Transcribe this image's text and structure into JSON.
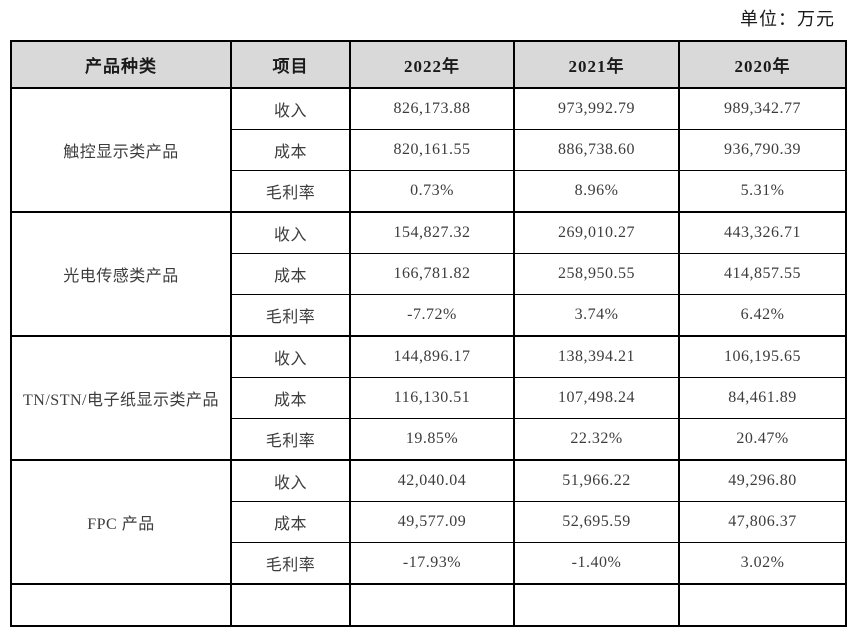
{
  "unit_label": "单位：万元",
  "table": {
    "headers": [
      "产品种类",
      "项目",
      "2022年",
      "2021年",
      "2020年"
    ],
    "groups": [
      {
        "category": "触控显示类产品",
        "rows": [
          {
            "label": "收入",
            "values": [
              "826,173.88",
              "973,992.79",
              "989,342.77"
            ]
          },
          {
            "label": "成本",
            "values": [
              "820,161.55",
              "886,738.60",
              "936,790.39"
            ]
          },
          {
            "label": "毛利率",
            "values": [
              "0.73%",
              "8.96%",
              "5.31%"
            ]
          }
        ]
      },
      {
        "category": "光电传感类产品",
        "rows": [
          {
            "label": "收入",
            "values": [
              "154,827.32",
              "269,010.27",
              "443,326.71"
            ]
          },
          {
            "label": "成本",
            "values": [
              "166,781.82",
              "258,950.55",
              "414,857.55"
            ]
          },
          {
            "label": "毛利率",
            "values": [
              "-7.72%",
              "3.74%",
              "6.42%"
            ]
          }
        ]
      },
      {
        "category": "TN/STN/电子纸显示类产品",
        "rows": [
          {
            "label": "收入",
            "values": [
              "144,896.17",
              "138,394.21",
              "106,195.65"
            ]
          },
          {
            "label": "成本",
            "values": [
              "116,130.51",
              "107,498.24",
              "84,461.89"
            ]
          },
          {
            "label": "毛利率",
            "values": [
              "19.85%",
              "22.32%",
              "20.47%"
            ]
          }
        ]
      },
      {
        "category": "FPC 产品",
        "rows": [
          {
            "label": "收入",
            "values": [
              "42,040.04",
              "51,966.22",
              "49,296.80"
            ]
          },
          {
            "label": "成本",
            "values": [
              "49,577.09",
              "52,695.59",
              "47,806.37"
            ]
          },
          {
            "label": "毛利率",
            "values": [
              "-17.93%",
              "-1.40%",
              "3.02%"
            ]
          }
        ]
      }
    ],
    "partial_next_row": true
  },
  "colors": {
    "header_bg": "#d9d9d9",
    "border": "#000000",
    "text": "#3c3c3c"
  }
}
